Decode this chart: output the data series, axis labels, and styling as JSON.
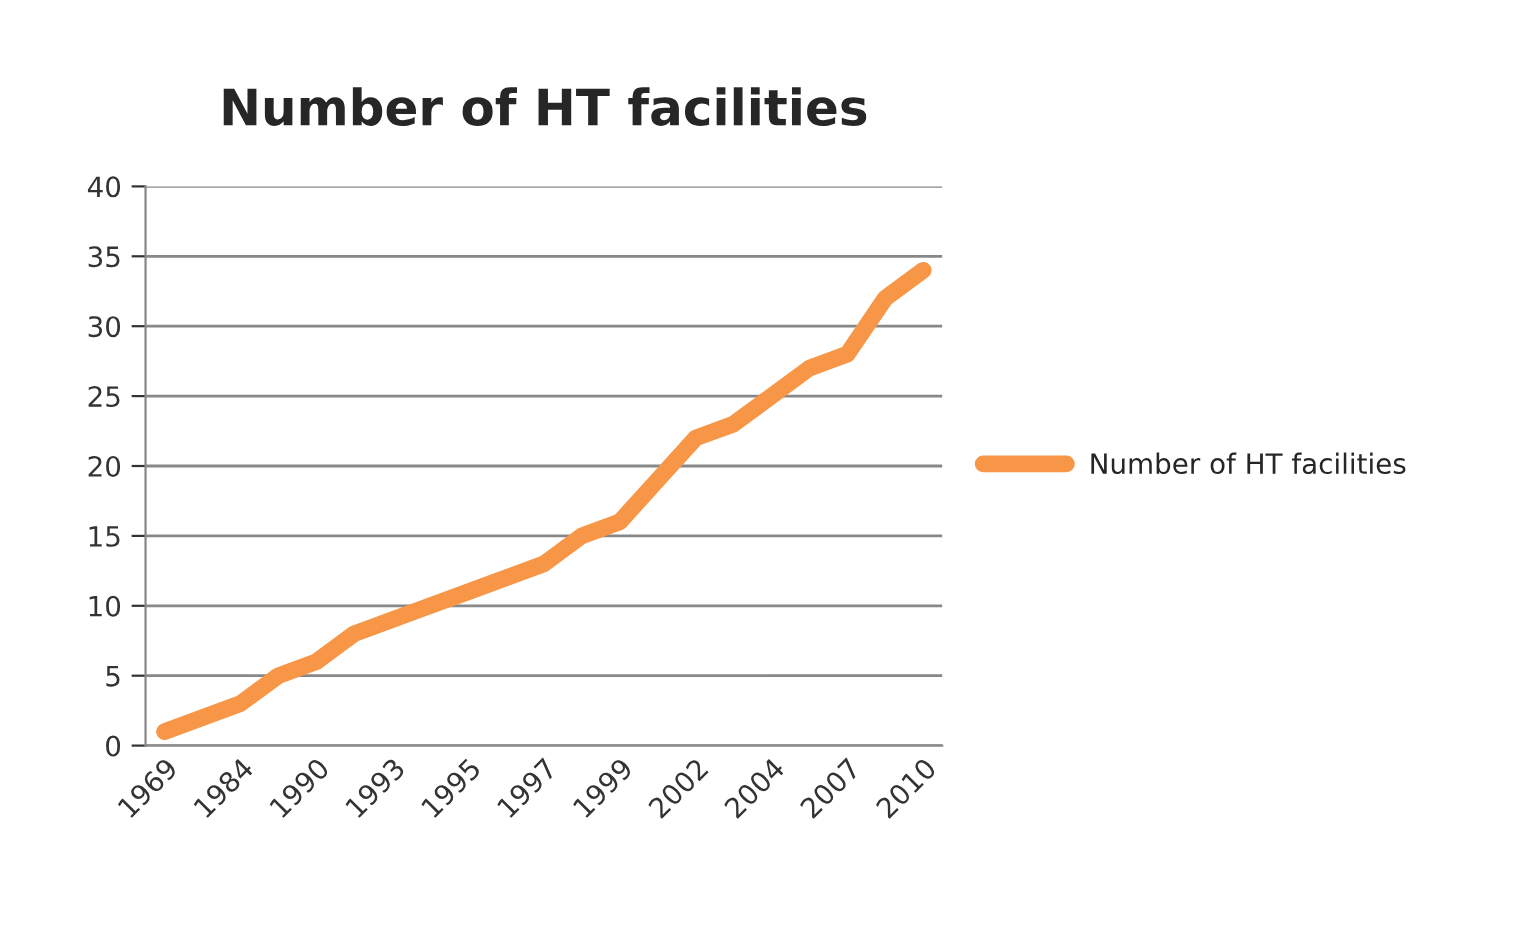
{
  "chart_data": {
    "type": "line",
    "title": "Number of HT facilities",
    "categories": [
      "1969",
      null,
      "1984",
      null,
      "1990",
      null,
      "1993",
      null,
      "1995",
      null,
      "1997",
      null,
      "1999",
      null,
      "2002",
      null,
      "2004",
      null,
      "2007",
      null,
      "2010"
    ],
    "series": [
      {
        "name": "Number of HT facilities",
        "color": "#f79646",
        "values": [
          1,
          2,
          3,
          5,
          6,
          8,
          9,
          10,
          11,
          12,
          13,
          15,
          16,
          19,
          22,
          23,
          25,
          27,
          28,
          32,
          34
        ]
      }
    ],
    "ylim": [
      0,
      40
    ],
    "yticks": [
      0,
      5,
      10,
      15,
      20,
      25,
      30,
      35,
      40
    ],
    "grid": "y",
    "legend": "right",
    "marker": "none",
    "line_style": "solid"
  }
}
